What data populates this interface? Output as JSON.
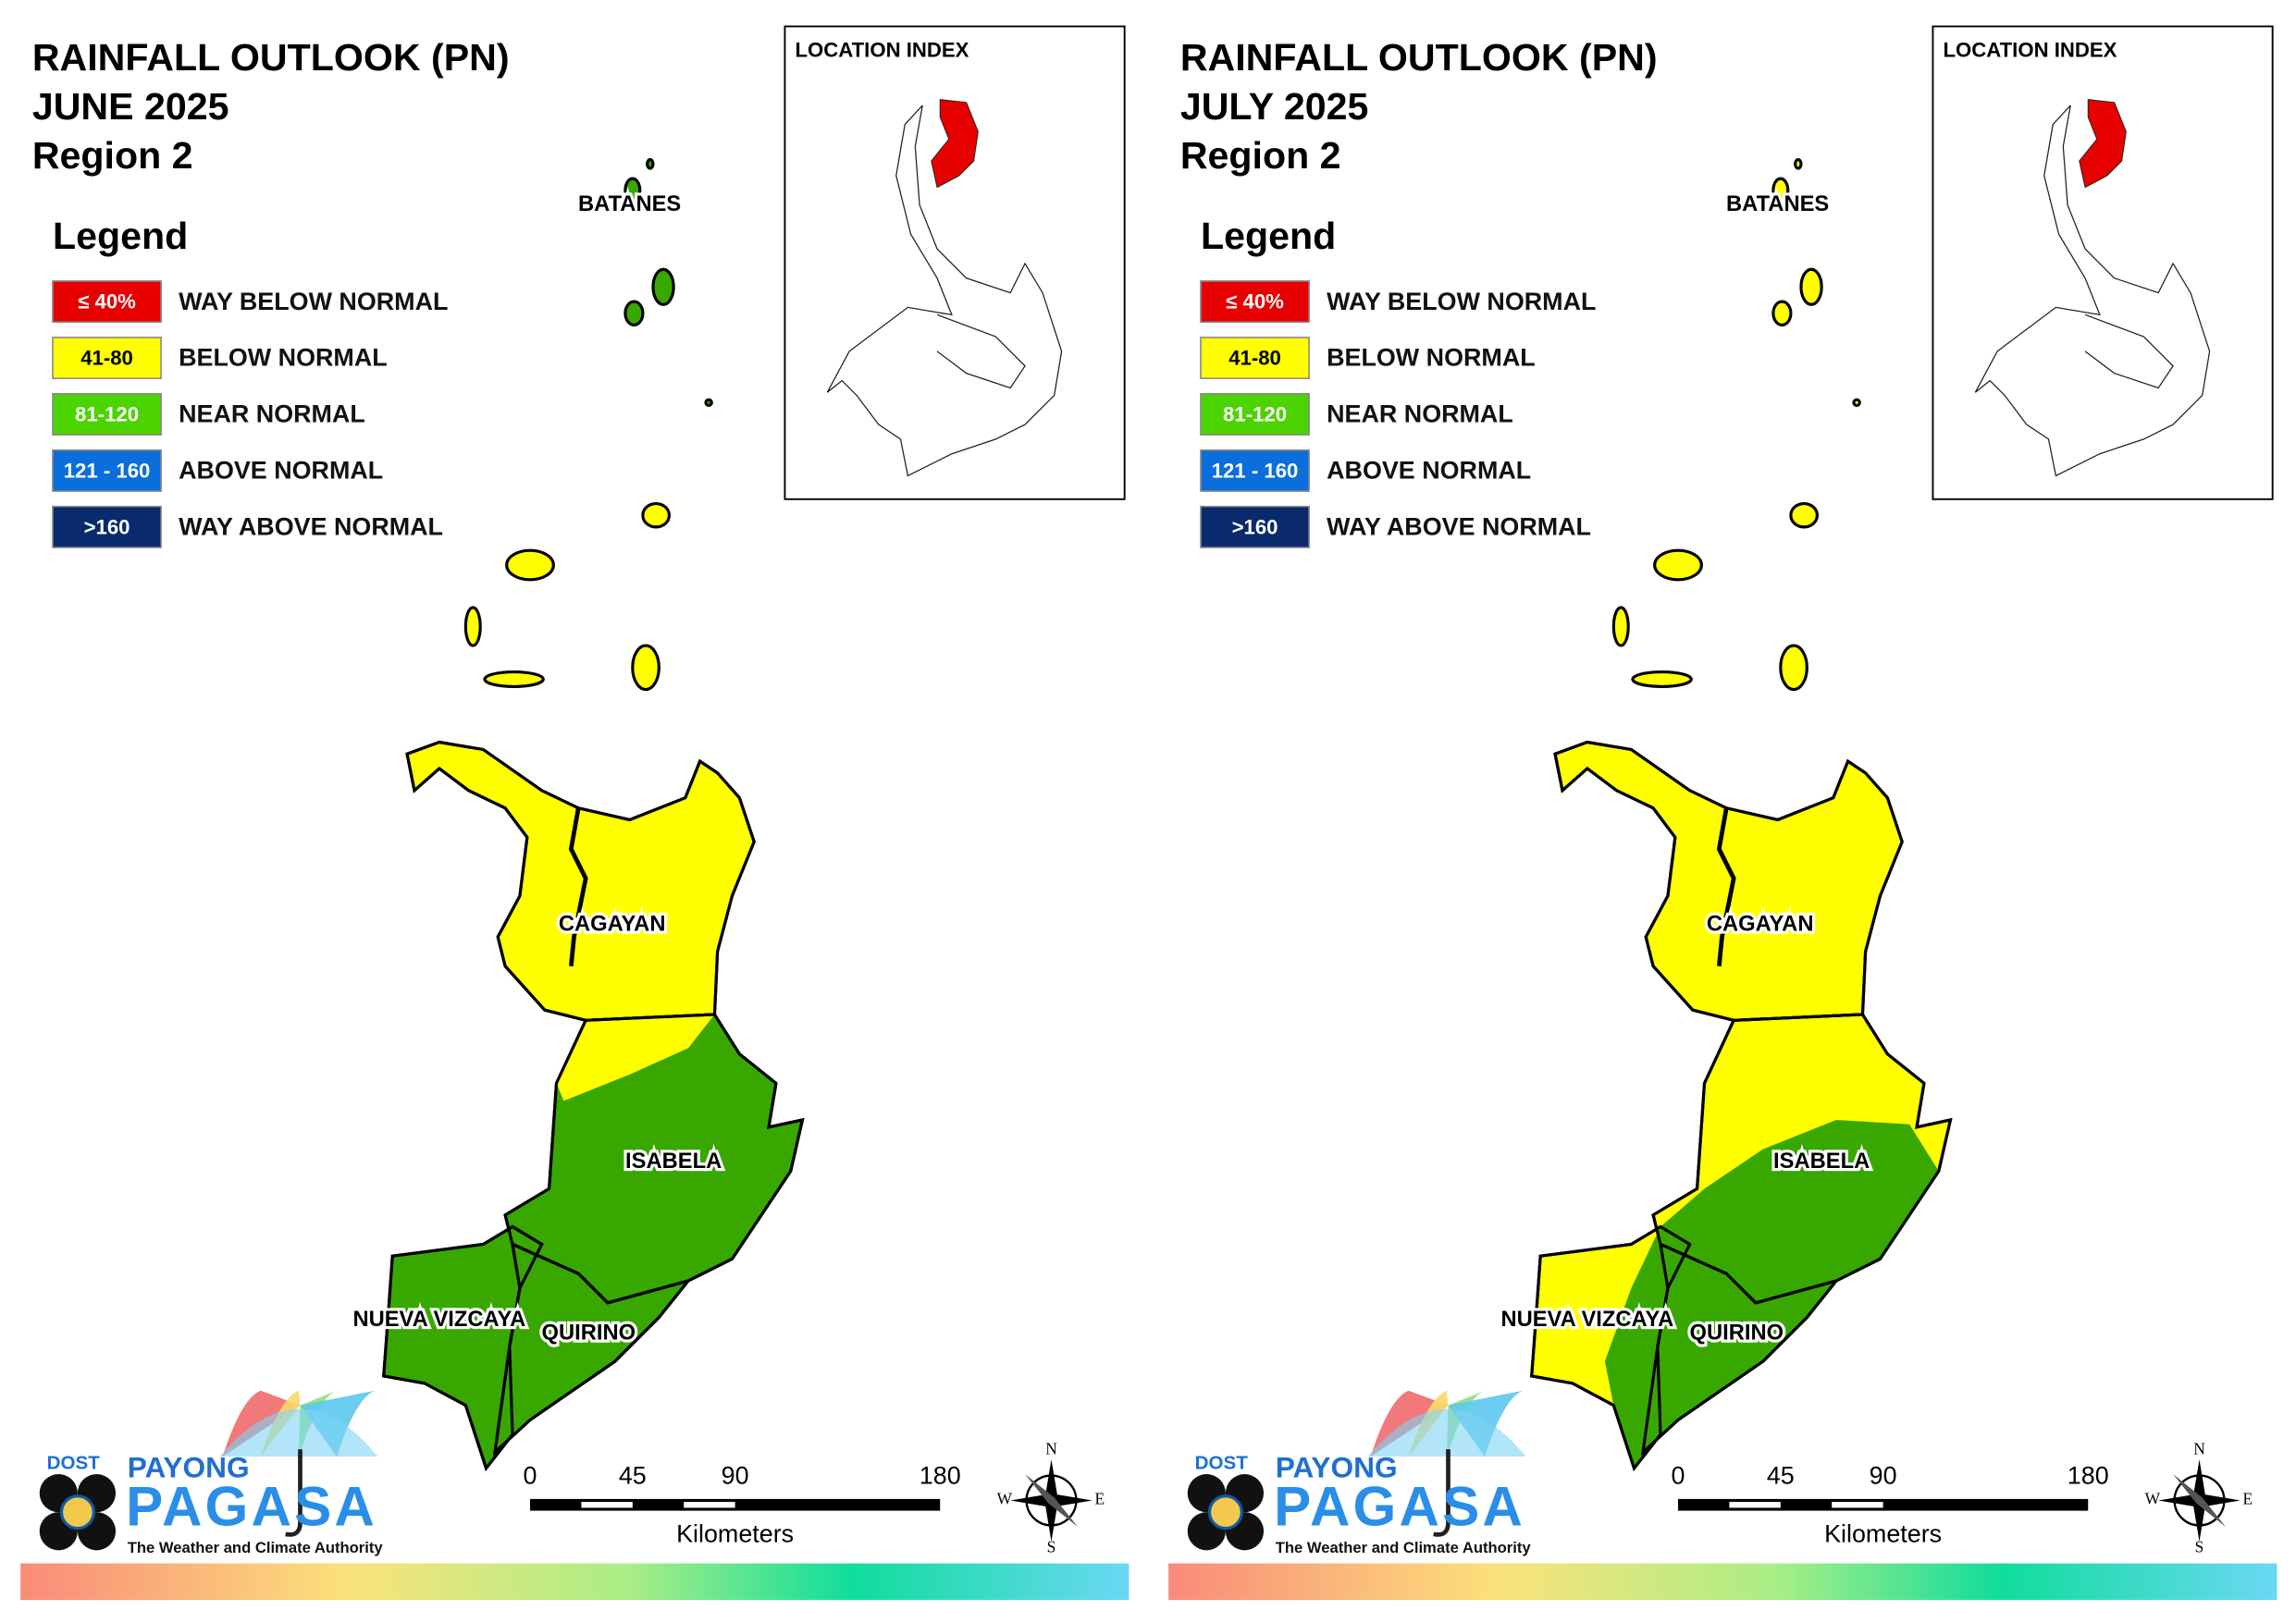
{
  "panels": [
    {
      "title": [
        "RAINFALL OUTLOOK (PN)",
        "JUNE 2025",
        "Region 2"
      ]
    },
    {
      "title": [
        "RAINFALL OUTLOOK (PN)",
        "JULY 2025",
        "Region 2"
      ]
    }
  ],
  "legend": {
    "title": "Legend",
    "items": [
      {
        "swatch": "≤ 40%",
        "label": "WAY BELOW NORMAL",
        "color": "#e60000"
      },
      {
        "swatch": "41-80",
        "label": "BELOW NORMAL",
        "color": "#ffff00"
      },
      {
        "swatch": "81-120",
        "label": "NEAR NORMAL",
        "color": "#4cd400"
      },
      {
        "swatch": "121 - 160",
        "label": "ABOVE NORMAL",
        "color": "#0a6edc"
      },
      {
        "swatch": ">160",
        "label": "WAY ABOVE NORMAL",
        "color": "#0a2a6e"
      }
    ]
  },
  "location_index": "LOCATION INDEX",
  "provinces": [
    "BATANES",
    "CAGAYAN",
    "ISABELA",
    "NUEVA VIZCAYA",
    "QUIRINO"
  ],
  "scale": {
    "ticks": [
      0,
      45,
      90,
      180
    ],
    "unit": "Kilometers"
  },
  "compass": [
    "N",
    "E",
    "S",
    "W"
  ],
  "logo": {
    "agency": "DOST",
    "brand_top": "PAYONG",
    "brand": "PAGASA",
    "tagline": "The Weather and Climate Authority"
  }
}
